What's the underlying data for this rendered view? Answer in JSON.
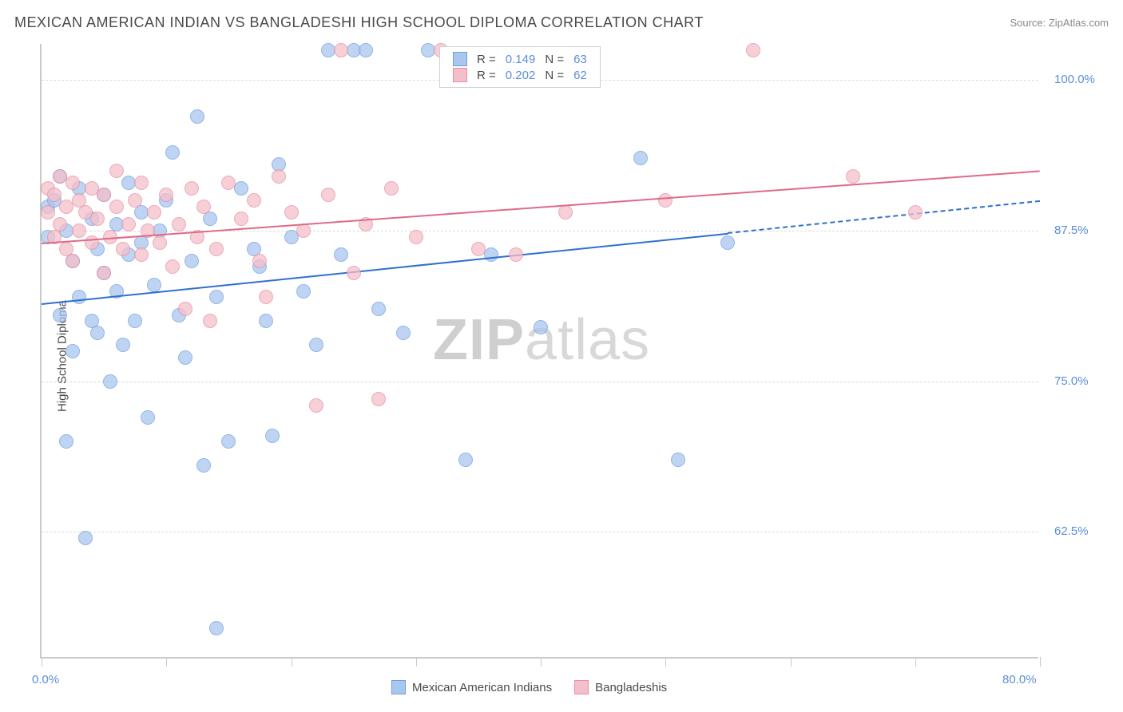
{
  "header": {
    "title": "MEXICAN AMERICAN INDIAN VS BANGLADESHI HIGH SCHOOL DIPLOMA CORRELATION CHART",
    "source": "Source: ZipAtlas.com"
  },
  "watermark": {
    "part1": "ZIP",
    "part2": "atlas"
  },
  "chart": {
    "type": "scatter",
    "background_color": "#ffffff",
    "grid_color": "#dcdcdc",
    "axis_color": "#c9c9c9",
    "y_axis_title": "High School Diploma",
    "xlim": [
      0,
      80
    ],
    "ylim": [
      52,
      103
    ],
    "x_ticks": [
      0,
      10,
      20,
      30,
      40,
      50,
      60,
      70,
      80
    ],
    "x_tick_labels": {
      "0": "0.0%",
      "80": "80.0%"
    },
    "y_ticks": [
      62.5,
      75.0,
      87.5,
      100.0
    ],
    "y_tick_labels": [
      "62.5%",
      "75.0%",
      "87.5%",
      "100.0%"
    ],
    "marker_radius": 9,
    "marker_stroke_width": 1.5,
    "marker_fill_opacity": 0.35,
    "series": [
      {
        "name": "Mexican American Indians",
        "color_stroke": "#6f9fe0",
        "color_fill": "#a9c6ee",
        "line_color": "#2f6fd0",
        "R": 0.149,
        "N": 63,
        "trend": {
          "x1": 0,
          "y1": 81.5,
          "x2": 80,
          "y2": 90.0,
          "solid_end_x": 55
        },
        "points": [
          [
            0.5,
            89.5
          ],
          [
            0.5,
            87.0
          ],
          [
            1.0,
            90.0
          ],
          [
            1.5,
            92.0
          ],
          [
            1.5,
            80.5
          ],
          [
            2.0,
            87.5
          ],
          [
            2.0,
            70.0
          ],
          [
            2.5,
            77.5
          ],
          [
            2.5,
            85.0
          ],
          [
            3.0,
            91.0
          ],
          [
            3.0,
            82.0
          ],
          [
            3.5,
            62.0
          ],
          [
            4.0,
            80.0
          ],
          [
            4.0,
            88.5
          ],
          [
            4.5,
            86.0
          ],
          [
            4.5,
            79.0
          ],
          [
            5.0,
            84.0
          ],
          [
            5.0,
            90.5
          ],
          [
            5.5,
            75.0
          ],
          [
            6.0,
            88.0
          ],
          [
            6.0,
            82.5
          ],
          [
            6.5,
            78.0
          ],
          [
            7.0,
            91.5
          ],
          [
            7.0,
            85.5
          ],
          [
            7.5,
            80.0
          ],
          [
            8.0,
            86.5
          ],
          [
            8.0,
            89.0
          ],
          [
            8.5,
            72.0
          ],
          [
            9.0,
            83.0
          ],
          [
            9.5,
            87.5
          ],
          [
            10.0,
            90.0
          ],
          [
            10.5,
            94.0
          ],
          [
            11.0,
            80.5
          ],
          [
            11.5,
            77.0
          ],
          [
            12.0,
            85.0
          ],
          [
            12.5,
            97.0
          ],
          [
            13.0,
            68.0
          ],
          [
            13.5,
            88.5
          ],
          [
            14.0,
            82.0
          ],
          [
            14.0,
            54.5
          ],
          [
            15.0,
            70.0
          ],
          [
            16.0,
            91.0
          ],
          [
            17.0,
            86.0
          ],
          [
            17.5,
            84.5
          ],
          [
            18.0,
            80.0
          ],
          [
            18.5,
            70.5
          ],
          [
            19.0,
            93.0
          ],
          [
            20.0,
            87.0
          ],
          [
            21.0,
            82.5
          ],
          [
            22.0,
            78.0
          ],
          [
            23.0,
            102.5
          ],
          [
            24.0,
            85.5
          ],
          [
            25.0,
            102.5
          ],
          [
            26.0,
            102.5
          ],
          [
            27.0,
            81.0
          ],
          [
            29.0,
            79.0
          ],
          [
            31.0,
            102.5
          ],
          [
            34.0,
            68.5
          ],
          [
            36.0,
            85.5
          ],
          [
            40.0,
            79.5
          ],
          [
            48.0,
            93.5
          ],
          [
            51.0,
            68.5
          ],
          [
            55.0,
            86.5
          ]
        ]
      },
      {
        "name": "Bangladeshis",
        "color_stroke": "#e88fa3",
        "color_fill": "#f4bfca",
        "line_color": "#e06a87",
        "R": 0.202,
        "N": 62,
        "trend": {
          "x1": 0,
          "y1": 86.5,
          "x2": 80,
          "y2": 92.5,
          "solid_end_x": 80
        },
        "points": [
          [
            0.5,
            91.0
          ],
          [
            0.5,
            89.0
          ],
          [
            1.0,
            87.0
          ],
          [
            1.0,
            90.5
          ],
          [
            1.5,
            88.0
          ],
          [
            1.5,
            92.0
          ],
          [
            2.0,
            86.0
          ],
          [
            2.0,
            89.5
          ],
          [
            2.5,
            91.5
          ],
          [
            2.5,
            85.0
          ],
          [
            3.0,
            90.0
          ],
          [
            3.0,
            87.5
          ],
          [
            3.5,
            89.0
          ],
          [
            4.0,
            86.5
          ],
          [
            4.0,
            91.0
          ],
          [
            4.5,
            88.5
          ],
          [
            5.0,
            90.5
          ],
          [
            5.0,
            84.0
          ],
          [
            5.5,
            87.0
          ],
          [
            6.0,
            89.5
          ],
          [
            6.0,
            92.5
          ],
          [
            6.5,
            86.0
          ],
          [
            7.0,
            88.0
          ],
          [
            7.5,
            90.0
          ],
          [
            8.0,
            85.5
          ],
          [
            8.0,
            91.5
          ],
          [
            8.5,
            87.5
          ],
          [
            9.0,
            89.0
          ],
          [
            9.5,
            86.5
          ],
          [
            10.0,
            90.5
          ],
          [
            10.5,
            84.5
          ],
          [
            11.0,
            88.0
          ],
          [
            11.5,
            81.0
          ],
          [
            12.0,
            91.0
          ],
          [
            12.5,
            87.0
          ],
          [
            13.0,
            89.5
          ],
          [
            13.5,
            80.0
          ],
          [
            14.0,
            86.0
          ],
          [
            15.0,
            91.5
          ],
          [
            16.0,
            88.5
          ],
          [
            17.0,
            90.0
          ],
          [
            17.5,
            85.0
          ],
          [
            18.0,
            82.0
          ],
          [
            19.0,
            92.0
          ],
          [
            20.0,
            89.0
          ],
          [
            21.0,
            87.5
          ],
          [
            22.0,
            73.0
          ],
          [
            23.0,
            90.5
          ],
          [
            24.0,
            102.5
          ],
          [
            25.0,
            84.0
          ],
          [
            26.0,
            88.0
          ],
          [
            27.0,
            73.5
          ],
          [
            28.0,
            91.0
          ],
          [
            30.0,
            87.0
          ],
          [
            32.0,
            102.5
          ],
          [
            35.0,
            86.0
          ],
          [
            38.0,
            85.5
          ],
          [
            42.0,
            89.0
          ],
          [
            50.0,
            90.0
          ],
          [
            57.0,
            102.5
          ],
          [
            65.0,
            92.0
          ],
          [
            70.0,
            89.0
          ]
        ]
      }
    ]
  },
  "legend_top": {
    "rows": [
      {
        "swatch_fill": "#a9c6ee",
        "swatch_stroke": "#6f9fe0",
        "r_label": "R =",
        "r_val": "0.149",
        "n_label": "N =",
        "n_val": "63"
      },
      {
        "swatch_fill": "#f4bfca",
        "swatch_stroke": "#e88fa3",
        "r_label": "R =",
        "r_val": "0.202",
        "n_label": "N =",
        "n_val": "62"
      }
    ]
  },
  "legend_bottom": {
    "items": [
      {
        "swatch_fill": "#a9c6ee",
        "swatch_stroke": "#6f9fe0",
        "label": "Mexican American Indians"
      },
      {
        "swatch_fill": "#f4bfca",
        "swatch_stroke": "#e88fa3",
        "label": "Bangladeshis"
      }
    ]
  }
}
